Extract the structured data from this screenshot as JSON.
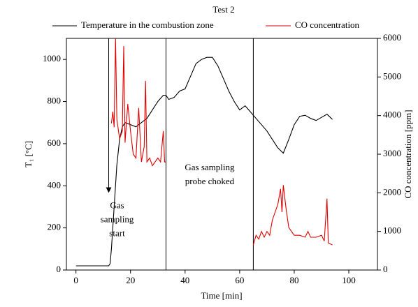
{
  "chart_data": {
    "type": "line",
    "title": "Test 2",
    "x_label": "Time [min]",
    "y_label": "T₁ [°C]",
    "y2_label": "CO concentration [ppm]",
    "xlim": [
      -3.5,
      110.5
    ],
    "ylim": [
      0,
      1100
    ],
    "y2lim": [
      0,
      6000
    ],
    "xticks": [
      0,
      20,
      40,
      60,
      80,
      100
    ],
    "yticks": [
      0,
      200,
      400,
      600,
      800,
      1000
    ],
    "y2ticks": [
      0,
      1000,
      2000,
      3000,
      4000,
      5000,
      6000
    ],
    "vlines": [
      33,
      65
    ],
    "annotations": [
      {
        "lines": [
          "Gas",
          "sampling",
          "start"
        ],
        "arrow_x": 12,
        "arrow_from": 1100,
        "arrow_to": 370
      },
      {
        "lines": [
          "Gas sampling",
          "probe choked"
        ]
      }
    ],
    "series": [
      {
        "name": "Temperature in the combustion zone",
        "color": "#000000",
        "axis": "y",
        "x": [
          0,
          4,
          8,
          12,
          12.5,
          13,
          14,
          15,
          16,
          17,
          18,
          20,
          22,
          24,
          26,
          28,
          30,
          32,
          33,
          34,
          36,
          38,
          40,
          42,
          44,
          46,
          48,
          50,
          52,
          54,
          56,
          58,
          60,
          62,
          64,
          66,
          68,
          70,
          72,
          74,
          76,
          78,
          80,
          82,
          84,
          86,
          88,
          90,
          92,
          94
        ],
        "values": [
          20,
          20,
          20,
          20,
          30,
          100,
          300,
          500,
          620,
          680,
          700,
          690,
          680,
          700,
          720,
          760,
          800,
          830,
          830,
          810,
          820,
          850,
          860,
          920,
          980,
          1000,
          1010,
          1010,
          970,
          910,
          850,
          800,
          760,
          780,
          750,
          720,
          690,
          660,
          620,
          580,
          555,
          620,
          690,
          730,
          735,
          720,
          710,
          725,
          740,
          715
        ]
      },
      {
        "name": "CO concentration",
        "color": "#e00000",
        "axis": "y2",
        "x": [
          13,
          13.5,
          14,
          14.5,
          15,
          16,
          17,
          17.5,
          18,
          19,
          20,
          21,
          22,
          23,
          24,
          25,
          25.5,
          26,
          27,
          28,
          29,
          30,
          31,
          32,
          32.5,
          33,
          49,
          65,
          66,
          67,
          68,
          69,
          70,
          71,
          72,
          73,
          74,
          75,
          75.5,
          76,
          77,
          78,
          80,
          82,
          84,
          85,
          86,
          88,
          90,
          91,
          92,
          92.5,
          94
        ],
        "values": [
          3800,
          4100,
          3700,
          6000,
          3900,
          3400,
          3600,
          5800,
          3300,
          4300,
          3600,
          3000,
          2900,
          4200,
          2800,
          3200,
          4900,
          2800,
          2900,
          2700,
          2800,
          2900,
          2800,
          3600,
          2800,
          2800,
          null,
          650,
          900,
          800,
          1000,
          850,
          1000,
          900,
          1300,
          1500,
          1700,
          2100,
          1500,
          2200,
          1600,
          1100,
          900,
          900,
          850,
          1000,
          850,
          850,
          900,
          750,
          1850,
          700,
          650
        ]
      }
    ]
  }
}
